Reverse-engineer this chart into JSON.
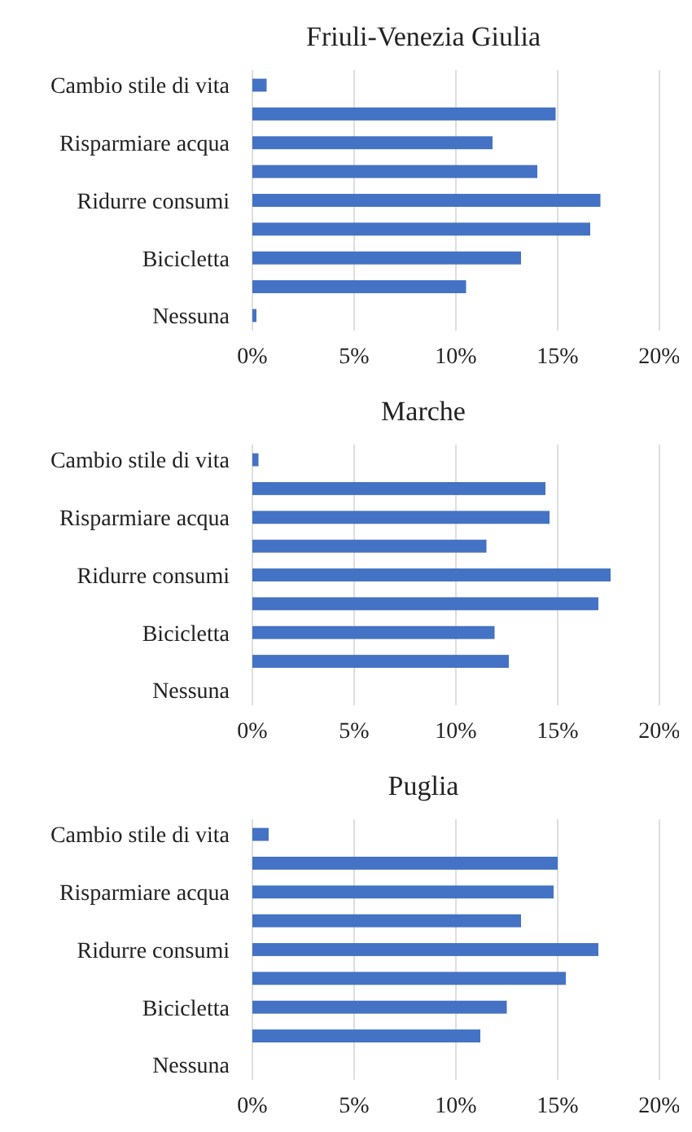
{
  "chart_data": [
    {
      "type": "bar",
      "orientation": "horizontal",
      "title": "Friuli-Venezia Giulia",
      "categories": [
        "Cambio stile di vita",
        null,
        "Risparmiare acqua",
        null,
        "Ridurre consumi",
        null,
        "Bicicletta",
        null,
        "Nessuna"
      ],
      "values": [
        0.7,
        14.9,
        11.8,
        14.0,
        17.1,
        16.6,
        13.2,
        10.5,
        0.2
      ],
      "color": "#4472c4",
      "xlim": [
        0,
        20
      ],
      "xticks": [
        {
          "value": 0,
          "label": "0%"
        },
        {
          "value": 5,
          "label": "5%"
        },
        {
          "value": 10,
          "label": "10%"
        },
        {
          "value": 15,
          "label": "15%"
        },
        {
          "value": 20,
          "label": "20%"
        }
      ],
      "grid": "x"
    },
    {
      "type": "bar",
      "orientation": "horizontal",
      "title": "Marche",
      "categories": [
        "Cambio stile di vita",
        null,
        "Risparmiare acqua",
        null,
        "Ridurre consumi",
        null,
        "Bicicletta",
        null,
        "Nessuna"
      ],
      "values": [
        0.3,
        14.4,
        14.6,
        11.5,
        17.6,
        17.0,
        11.9,
        12.6,
        0
      ],
      "color": "#4472c4",
      "xlim": [
        0,
        20
      ],
      "xticks": [
        {
          "value": 0,
          "label": "0%"
        },
        {
          "value": 5,
          "label": "5%"
        },
        {
          "value": 10,
          "label": "10%"
        },
        {
          "value": 15,
          "label": "15%"
        },
        {
          "value": 20,
          "label": "20%"
        }
      ],
      "grid": "x"
    },
    {
      "type": "bar",
      "orientation": "horizontal",
      "title": "Puglia",
      "categories": [
        "Cambio stile di vita",
        null,
        "Risparmiare acqua",
        null,
        "Ridurre consumi",
        null,
        "Bicicletta",
        null,
        "Nessuna"
      ],
      "values": [
        0.8,
        15.0,
        14.8,
        13.2,
        17.0,
        15.4,
        12.5,
        11.2,
        0
      ],
      "color": "#4472c4",
      "xlim": [
        0,
        20
      ],
      "xticks": [
        {
          "value": 0,
          "label": "0%"
        },
        {
          "value": 5,
          "label": "5%"
        },
        {
          "value": 10,
          "label": "10%"
        },
        {
          "value": 15,
          "label": "15%"
        },
        {
          "value": 20,
          "label": "20%"
        }
      ],
      "grid": "x"
    }
  ]
}
